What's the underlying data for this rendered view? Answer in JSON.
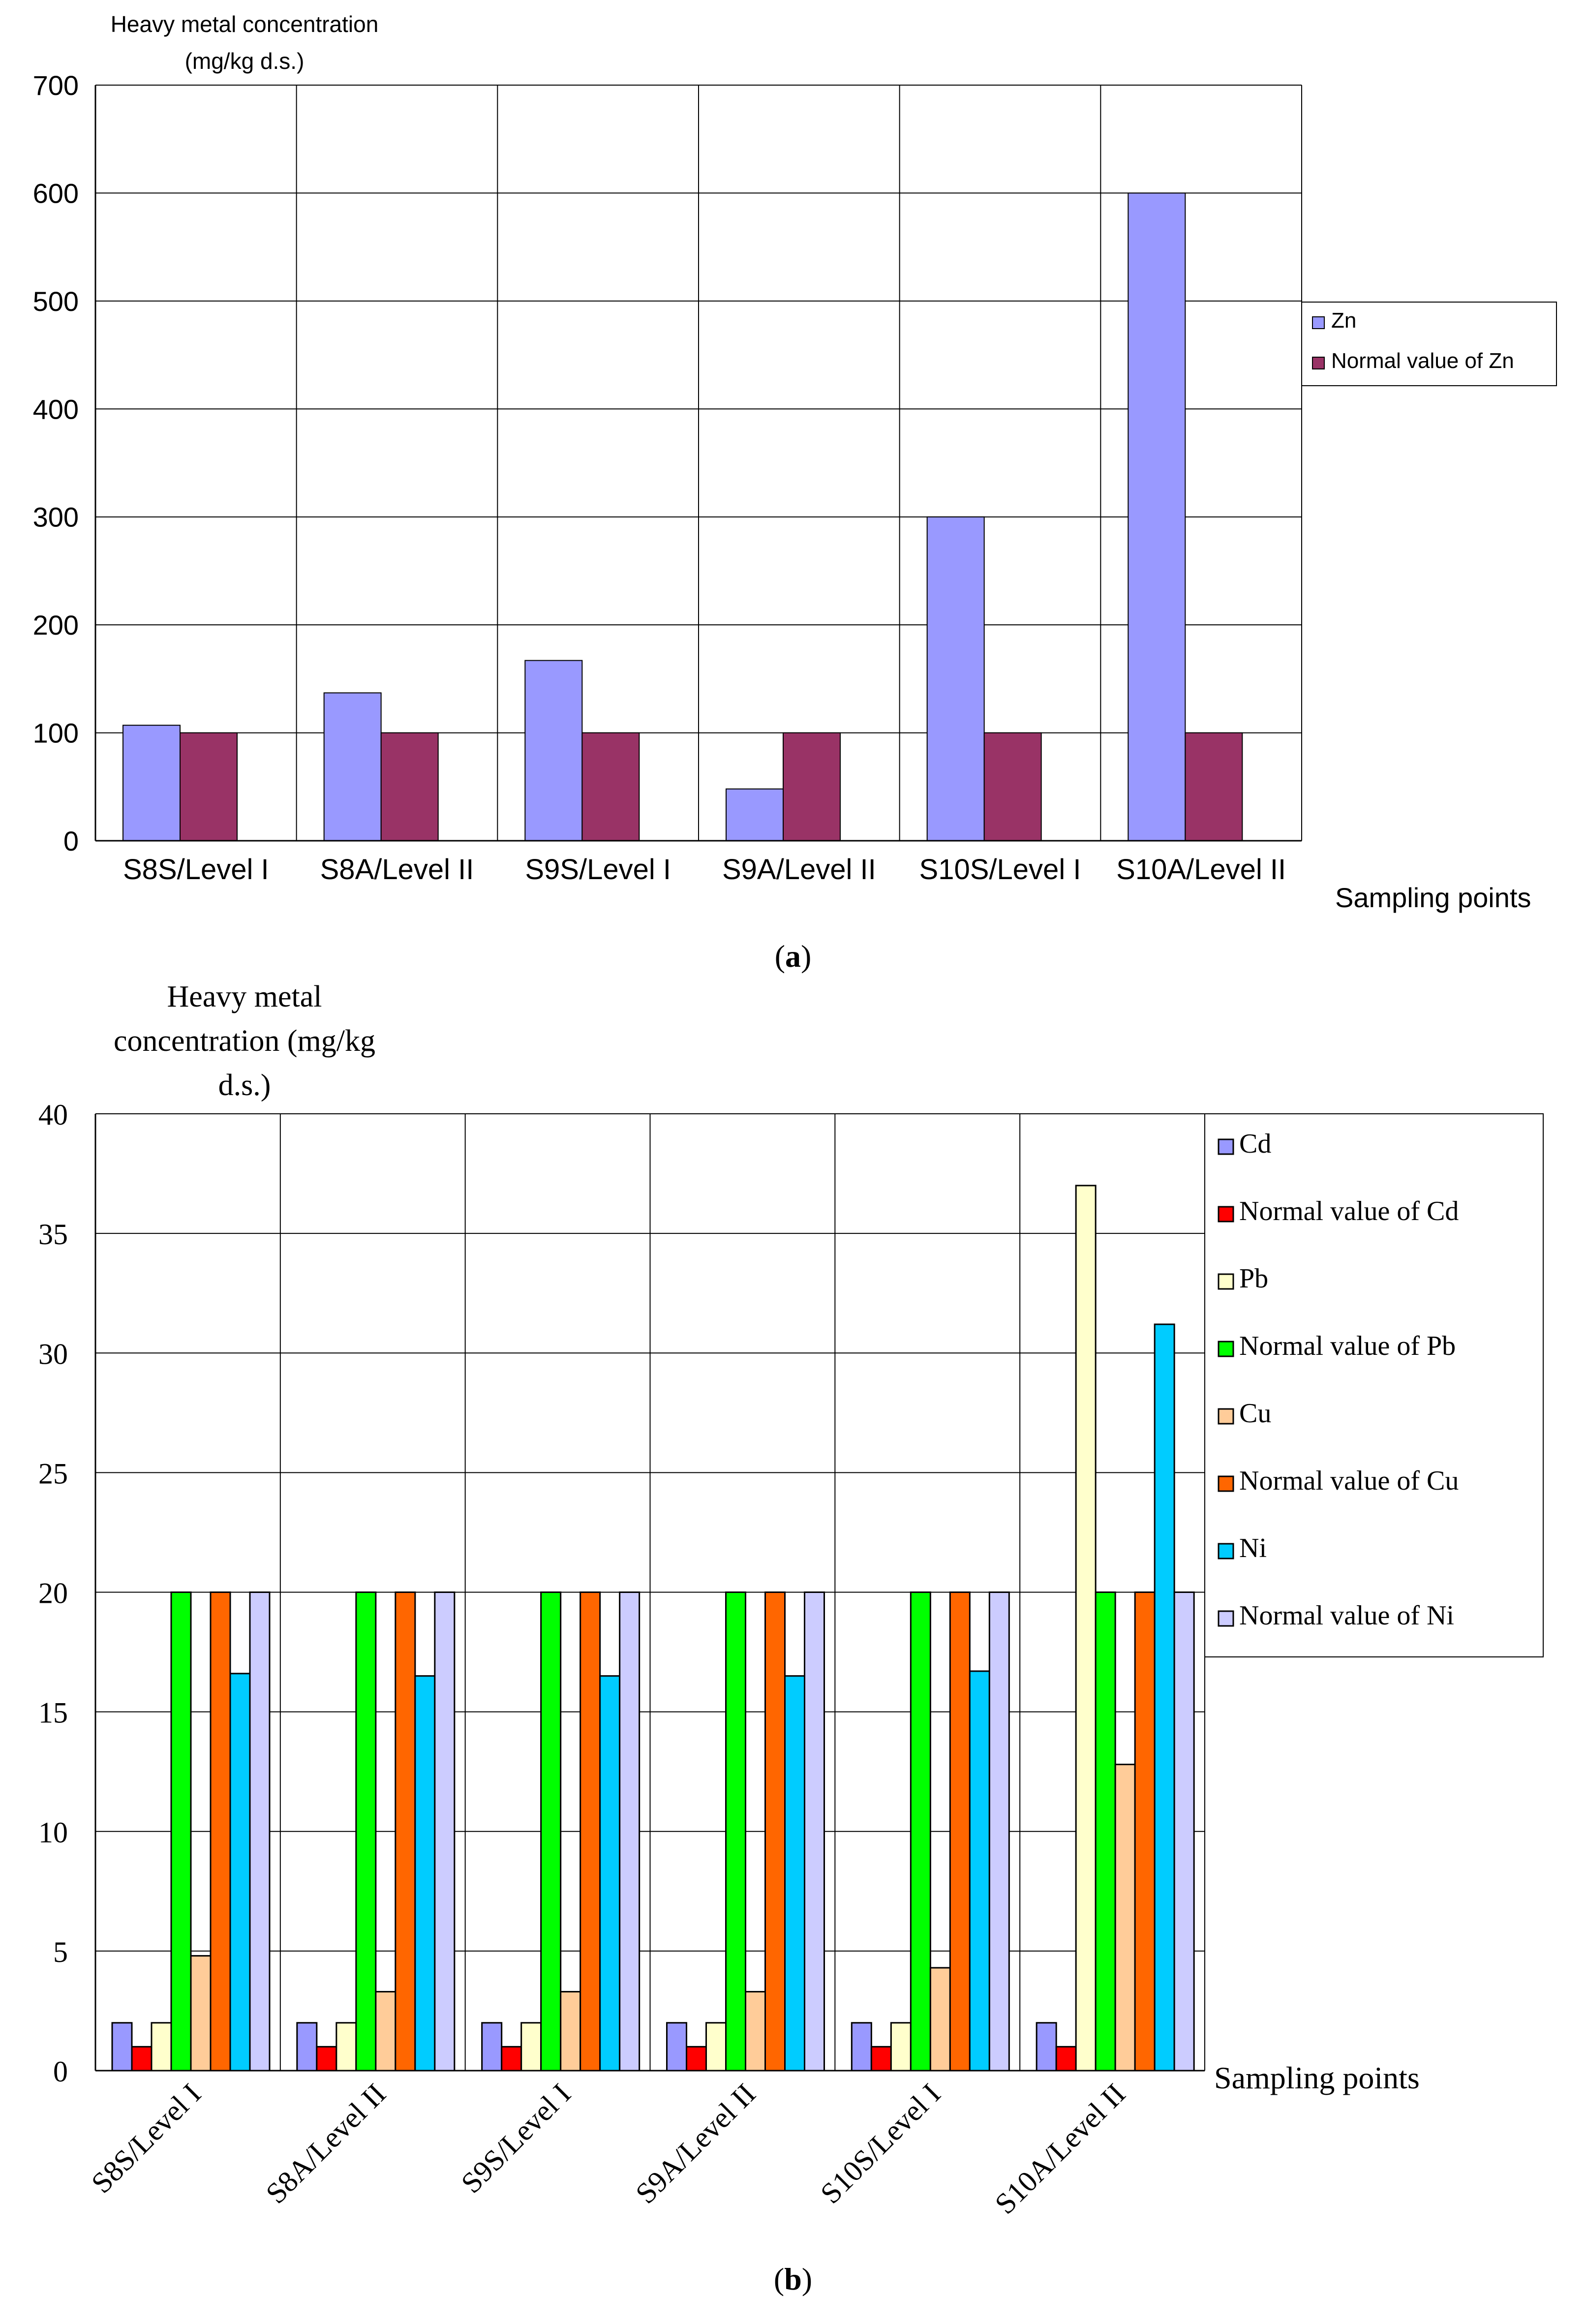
{
  "chart_data": [
    {
      "type": "bar",
      "panel_label": "a",
      "title": "",
      "ylabel_line1": "Heavy metal concentration",
      "ylabel_line2": "(mg/kg d.s.)",
      "xlabel": "Sampling points",
      "ylim": [
        0,
        700
      ],
      "yticks": [
        "0",
        "100",
        "200",
        "300",
        "400",
        "500",
        "600",
        "700"
      ],
      "ytick_values": [
        0,
        100,
        200,
        300,
        400,
        500,
        600,
        700
      ],
      "categories": [
        "S8S/Level I",
        "S8A/Level II",
        "S9S/Level I",
        "S9A/Level II",
        "S10S/Level I",
        "S10A/Level II"
      ],
      "legend_position": "right",
      "grid": true,
      "series": [
        {
          "name": "Zn",
          "color": "#9999ff",
          "values": [
            107,
            137,
            167,
            48,
            300,
            600
          ]
        },
        {
          "name": "Normal value of Zn",
          "color": "#993366",
          "values": [
            100,
            100,
            100,
            100,
            100,
            100
          ]
        }
      ]
    },
    {
      "type": "bar",
      "panel_label": "b",
      "title": "",
      "ylabel_line1": "Heavy metal",
      "ylabel_line2": "concentration (mg/kg",
      "ylabel_line3": "d.s.)",
      "xlabel": "Sampling points",
      "ylim": [
        0,
        40
      ],
      "yticks": [
        "0",
        "5",
        "10",
        "15",
        "20",
        "25",
        "30",
        "35",
        "40"
      ],
      "ytick_values": [
        0,
        5,
        10,
        15,
        20,
        25,
        30,
        35,
        40
      ],
      "categories": [
        "S8S/Level I",
        "S8A/Level II",
        "S9S/Level I",
        "S9A/Level II",
        "S10S/Level I",
        "S10A/Level II"
      ],
      "legend_position": "right",
      "grid": true,
      "series": [
        {
          "name": "Cd",
          "color": "#9999ff",
          "values": [
            2,
            2,
            2,
            2,
            2,
            2
          ]
        },
        {
          "name": "Normal value of Cd",
          "color": "#ff0000",
          "values": [
            1,
            1,
            1,
            1,
            1,
            1
          ]
        },
        {
          "name": "Pb",
          "color": "#ffffcc",
          "values": [
            2,
            2,
            2,
            2,
            2,
            37
          ]
        },
        {
          "name": "Normal value of Pb",
          "color": "#00ff00",
          "values": [
            20,
            20,
            20,
            20,
            20,
            20
          ]
        },
        {
          "name": "Cu",
          "color": "#ffcc99",
          "values": [
            4.8,
            3.3,
            3.3,
            3.3,
            4.3,
            12.8
          ]
        },
        {
          "name": "Normal value of Cu",
          "color": "#ff6600",
          "values": [
            20,
            20,
            20,
            20,
            20,
            20
          ]
        },
        {
          "name": "Ni",
          "color": "#00ccff",
          "values": [
            16.6,
            16.5,
            16.5,
            16.5,
            16.7,
            31.2
          ]
        },
        {
          "name": "Normal value of Ni",
          "color": "#ccccff",
          "values": [
            20,
            20,
            20,
            20,
            20,
            20
          ]
        }
      ]
    }
  ]
}
